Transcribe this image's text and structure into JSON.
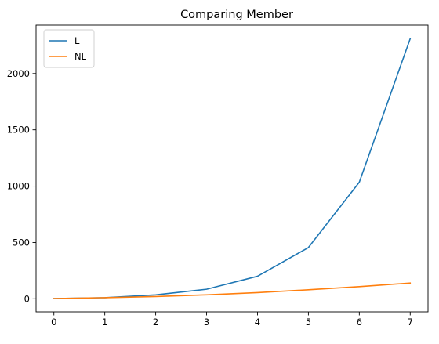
{
  "chart_data": {
    "type": "line",
    "title": "Comparing Member",
    "xlabel": "",
    "ylabel": "",
    "x": [
      0,
      1,
      2,
      3,
      4,
      5,
      6,
      7
    ],
    "xticks": [
      "0",
      "1",
      "2",
      "3",
      "4",
      "5",
      "6",
      "7"
    ],
    "yticks": [
      "0",
      "500",
      "1000",
      "1500",
      "2000"
    ],
    "ytick_values": [
      0,
      500,
      1000,
      1500,
      2000
    ],
    "xlim": [
      -0.35,
      7.35
    ],
    "ylim": [
      -116,
      2430
    ],
    "grid": false,
    "legend_position": "top-left",
    "series": [
      {
        "name": "L",
        "color": "#1f77b4",
        "values": [
          2,
          10,
          35,
          85,
          200,
          455,
          1035,
          2310
        ]
      },
      {
        "name": "NL",
        "color": "#ff7f0e",
        "values": [
          2,
          10,
          20,
          35,
          55,
          80,
          108,
          140
        ]
      }
    ]
  }
}
